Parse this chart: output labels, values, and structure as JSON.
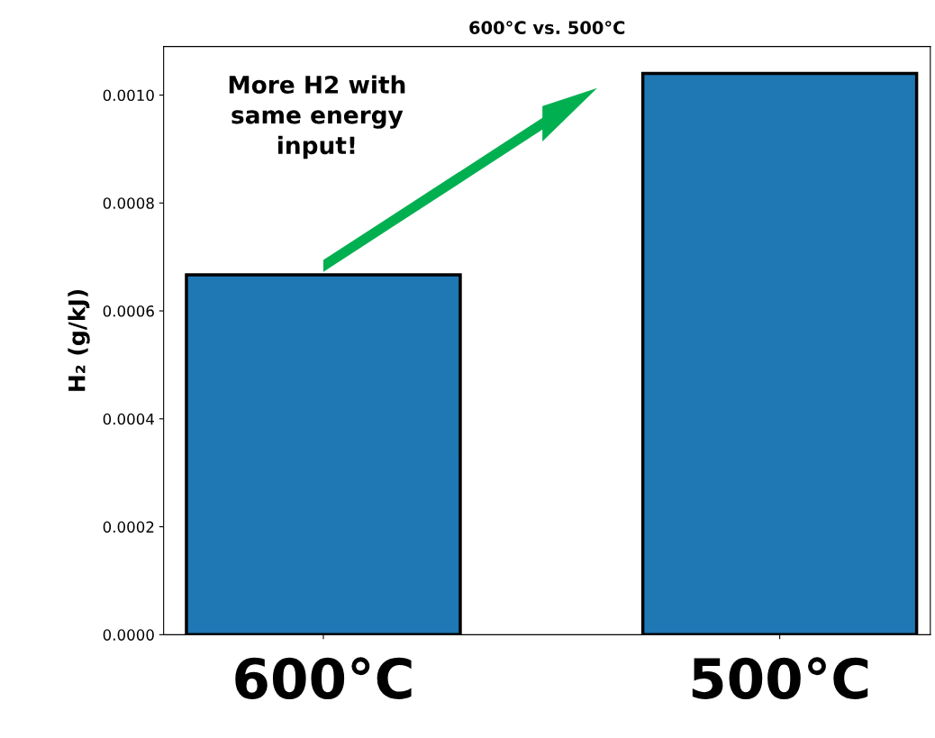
{
  "chart_data": {
    "type": "bar",
    "title": "600°C vs. 500°C",
    "ylabel": "H₂ (g/kJ)",
    "categories": [
      "600°C",
      "500°C"
    ],
    "values": [
      0.000667,
      0.00104
    ],
    "color": "#1f77b4",
    "ylim": [
      0,
      0.00109
    ],
    "yticks": [
      {
        "value": 0,
        "label": "0.0000"
      },
      {
        "value": 0.0002,
        "label": "0.0002"
      },
      {
        "value": 0.0004,
        "label": "0.0004"
      },
      {
        "value": 0.0006,
        "label": "0.0006"
      },
      {
        "value": 0.0008,
        "label": "0.0008"
      },
      {
        "value": 0.001,
        "label": "0.0010"
      }
    ],
    "annotations": [
      "More H2 with\nsame energy\ninput!"
    ],
    "grid": false
  }
}
